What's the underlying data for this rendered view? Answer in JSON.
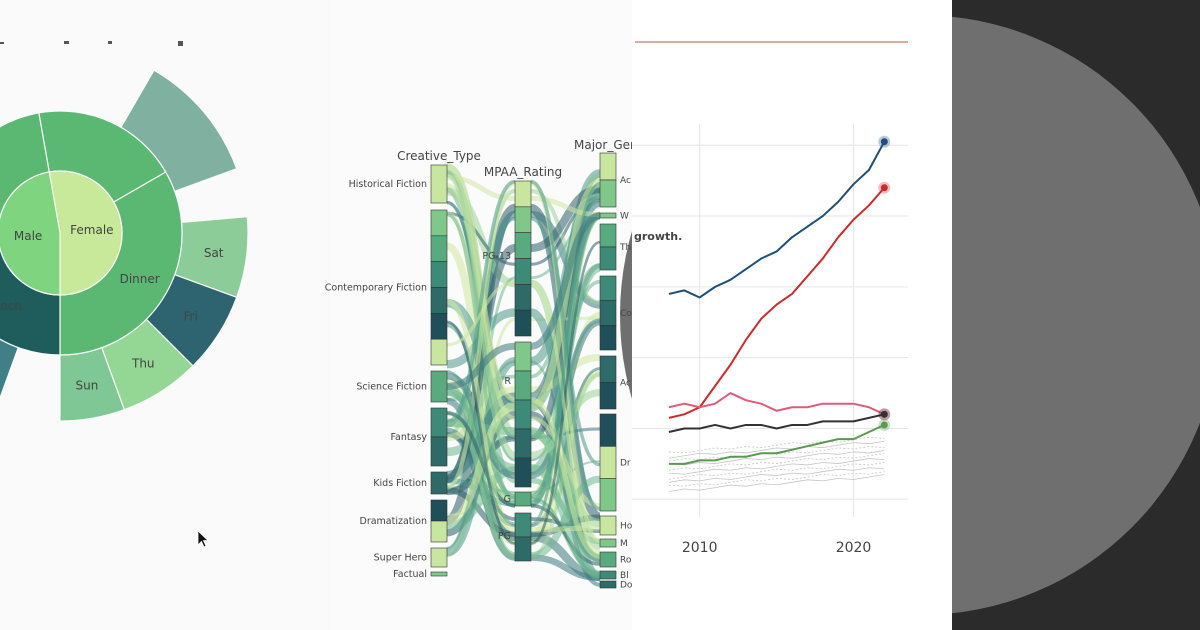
{
  "chart_data": [
    {
      "type": "sunburst",
      "center": [
        {
          "name": "Female",
          "color": "#c8e89a",
          "start": 260,
          "end": 450
        },
        {
          "name": "Male",
          "color": "#7fd47f",
          "start": 90,
          "end": 260
        }
      ],
      "ring2": [
        {
          "name": "Dinner",
          "parent": "Female",
          "color": "#5ab873",
          "start": 330,
          "end": 450,
          "label": true
        },
        {
          "name": "",
          "parent": "Female",
          "color": "#5ab873",
          "start": 260,
          "end": 330,
          "label": false
        },
        {
          "name": "Lunch",
          "parent": "Male",
          "color": "#1f5c5c",
          "start": 90,
          "end": 165,
          "label": true
        },
        {
          "name": "Dinner",
          "parent": "Male",
          "color": "#5ab873",
          "start": 165,
          "end": 260,
          "label": true,
          "display": "nner"
        }
      ],
      "ring3": [
        {
          "name": "Sat",
          "color": "#8ccc99",
          "start": 355,
          "end": 380
        },
        {
          "name": "Fri",
          "color": "#2e6470",
          "start": 380,
          "end": 405
        },
        {
          "name": "Thu",
          "color": "#94d694",
          "start": 405,
          "end": 430
        },
        {
          "name": "Sun",
          "color": "#7fc896",
          "start": 430,
          "end": 450
        },
        {
          "name": "Fri",
          "color": "#3f7f85",
          "start": 110,
          "end": 140
        },
        {
          "name": "Thu",
          "color": "#4a7f85",
          "start": 140,
          "end": 165
        },
        {
          "name": "",
          "color": "#6ab09a",
          "start": 165,
          "end": 200
        },
        {
          "name": "",
          "color": "#7fb0a0",
          "start": 300,
          "end": 340
        }
      ]
    },
    {
      "type": "parallel_categories",
      "dimensions": [
        {
          "name": "Creative_Type",
          "categories": [
            "Historical Fiction",
            "Contemporary Fiction",
            "Science Fiction",
            "Fantasy",
            "Kids Fiction",
            "Dramatization",
            "Super Hero",
            "Factual"
          ]
        },
        {
          "name": "MPAA_Rating",
          "categories": [
            "PG-13",
            "R",
            "G",
            "PG"
          ]
        },
        {
          "name": "Major_Gen",
          "categories": [
            "Ac",
            "W",
            "Th",
            "Co",
            "Ac",
            "Dr",
            "Ho",
            "M",
            "Ro",
            "Bl",
            "Do"
          ]
        }
      ]
    },
    {
      "type": "line",
      "xticks": [
        2010,
        2020
      ],
      "annotation": "growth.",
      "series": [
        {
          "color": "#1f4e79",
          "x": [
            2008,
            2009,
            2010,
            2011,
            2012,
            2013,
            2014,
            2015,
            2016,
            2017,
            2018,
            2019,
            2020,
            2021,
            2022
          ],
          "y": [
            0.68,
            0.69,
            0.67,
            0.7,
            0.72,
            0.75,
            0.78,
            0.8,
            0.84,
            0.87,
            0.9,
            0.94,
            0.99,
            1.03,
            1.11
          ]
        },
        {
          "color": "#cc2b2b",
          "x": [
            2008,
            2009,
            2010,
            2011,
            2012,
            2013,
            2014,
            2015,
            2016,
            2017,
            2018,
            2019,
            2020,
            2021,
            2022
          ],
          "y": [
            0.33,
            0.34,
            0.36,
            0.42,
            0.48,
            0.55,
            0.61,
            0.65,
            0.68,
            0.73,
            0.78,
            0.84,
            0.89,
            0.93,
            0.98
          ]
        },
        {
          "color": "#e05a7a",
          "x": [
            2008,
            2009,
            2010,
            2011,
            2012,
            2013,
            2014,
            2015,
            2016,
            2017,
            2018,
            2019,
            2020,
            2021,
            2022
          ],
          "y": [
            0.36,
            0.37,
            0.36,
            0.37,
            0.4,
            0.38,
            0.37,
            0.35,
            0.36,
            0.36,
            0.37,
            0.37,
            0.37,
            0.36,
            0.34
          ]
        },
        {
          "color": "#333333",
          "x": [
            2008,
            2009,
            2010,
            2011,
            2012,
            2013,
            2014,
            2015,
            2016,
            2017,
            2018,
            2019,
            2020,
            2021,
            2022
          ],
          "y": [
            0.29,
            0.3,
            0.3,
            0.31,
            0.3,
            0.31,
            0.31,
            0.3,
            0.31,
            0.31,
            0.32,
            0.32,
            0.32,
            0.33,
            0.34
          ]
        },
        {
          "color": "#5a9a50",
          "x": [
            2008,
            2009,
            2010,
            2011,
            2012,
            2013,
            2014,
            2015,
            2016,
            2017,
            2018,
            2019,
            2020,
            2021,
            2022
          ],
          "y": [
            0.2,
            0.2,
            0.21,
            0.21,
            0.22,
            0.22,
            0.23,
            0.23,
            0.24,
            0.25,
            0.26,
            0.27,
            0.27,
            0.29,
            0.31
          ]
        }
      ]
    }
  ]
}
